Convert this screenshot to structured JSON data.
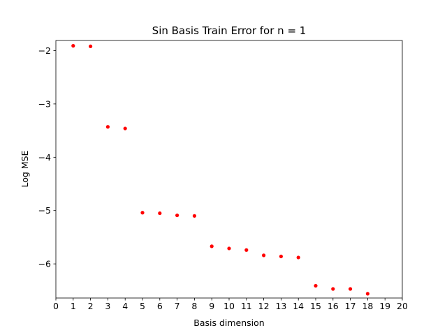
{
  "chart_data": {
    "type": "scatter",
    "title": "Sin Basis Train Error for n = 1",
    "xlabel": "Basis dimension",
    "ylabel": "Log MSE",
    "xlim": [
      0,
      20
    ],
    "ylim": [
      -6.64,
      -1.81
    ],
    "xticks": [
      0,
      1,
      2,
      3,
      4,
      5,
      6,
      7,
      8,
      9,
      10,
      11,
      12,
      13,
      14,
      15,
      16,
      17,
      18,
      19,
      20
    ],
    "yticks": [
      -6,
      -5,
      -4,
      -3,
      -2
    ],
    "ytick_labels": [
      "−6",
      "−5",
      "−4",
      "−3",
      "−2"
    ],
    "grid": false,
    "marker_color": "#ff0000",
    "series": [
      {
        "x": [
          1,
          2,
          3,
          4,
          5,
          6,
          7,
          8,
          9,
          10,
          11,
          12,
          13,
          14,
          15,
          16,
          17,
          18
        ],
        "y": [
          -1.91,
          -1.92,
          -3.43,
          -3.46,
          -5.04,
          -5.05,
          -5.09,
          -5.1,
          -5.67,
          -5.71,
          -5.74,
          -5.84,
          -5.86,
          -5.88,
          -6.41,
          -6.47,
          -6.47,
          -6.56
        ]
      }
    ]
  }
}
